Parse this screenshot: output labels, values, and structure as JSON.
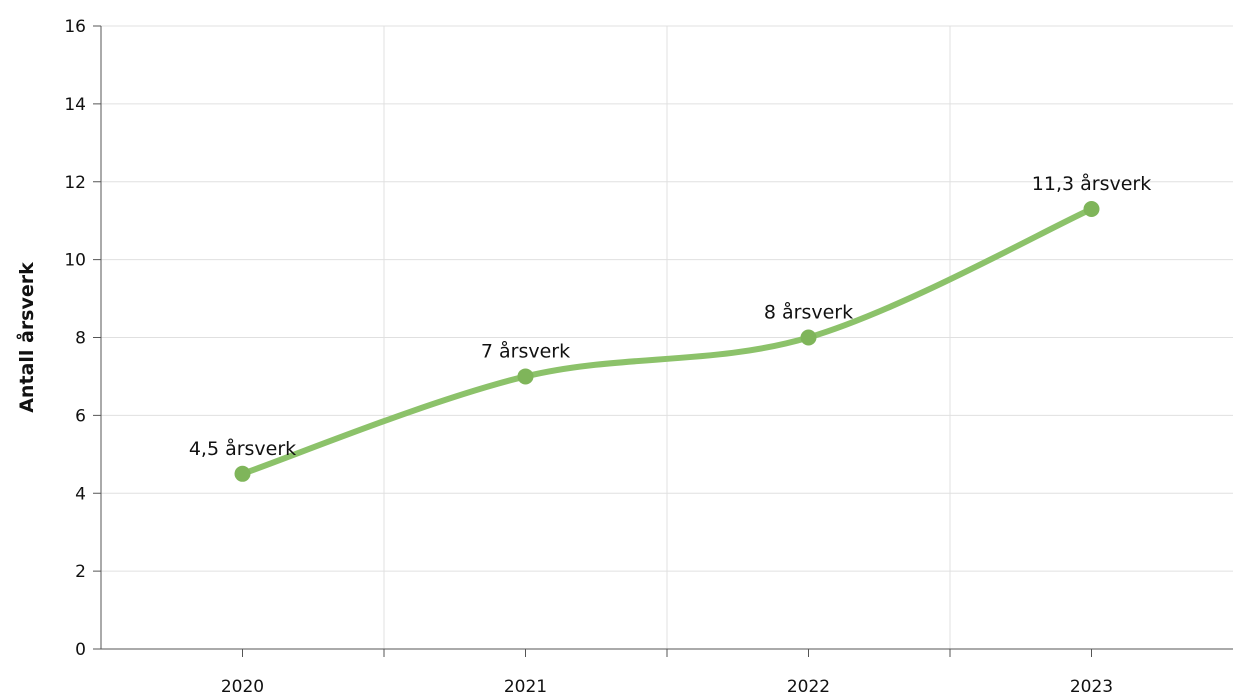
{
  "chart_data": {
    "type": "line",
    "title": "",
    "xlabel": "",
    "ylabel": "Antall årsverk",
    "categories": [
      "2020",
      "2021",
      "2022",
      "2023"
    ],
    "series": [
      {
        "values": [
          4.5,
          7,
          8,
          11.3
        ],
        "data_labels": [
          "4,5 årsverk",
          "7 årsverk",
          "8 årsverk",
          "11,3 årsverk"
        ],
        "color": "#8cc26a",
        "marker_color": "#7fb55a",
        "smooth": true
      }
    ],
    "ylim": [
      0,
      16
    ],
    "yticks": [
      0,
      2,
      4,
      6,
      8,
      10,
      12,
      14,
      16
    ],
    "grid": true,
    "legend": "none"
  },
  "colors": {
    "grid": "#e0e0e0",
    "axis": "#555555",
    "line": "#8cc26a",
    "marker": "#7fb55a"
  }
}
